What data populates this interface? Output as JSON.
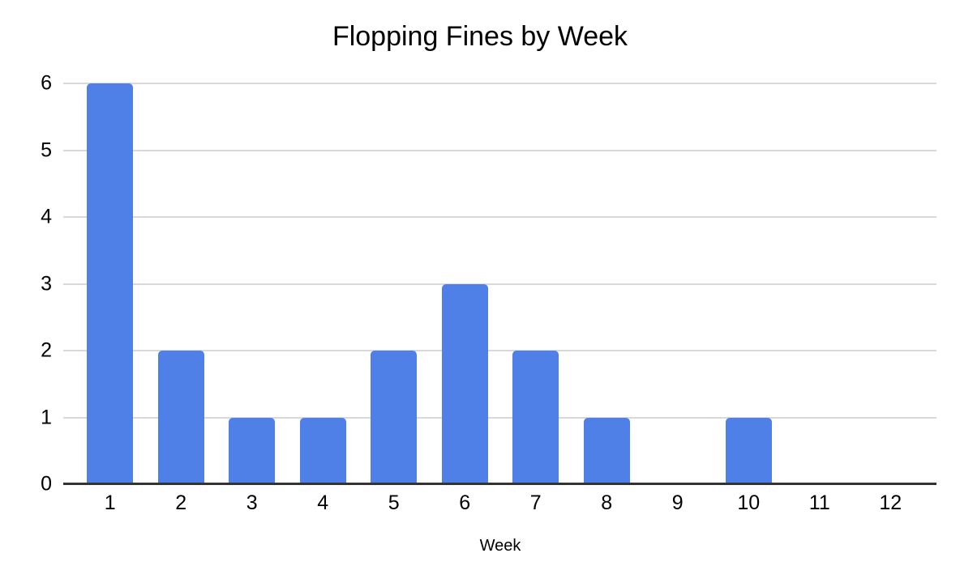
{
  "chart_data": {
    "type": "bar",
    "title": "Flopping Fines by Week",
    "xlabel": "Week",
    "ylabel": "",
    "categories": [
      "1",
      "2",
      "3",
      "4",
      "5",
      "6",
      "7",
      "8",
      "9",
      "10",
      "11",
      "12"
    ],
    "values": [
      6,
      2,
      1,
      1,
      2,
      3,
      2,
      1,
      0,
      1,
      0,
      0
    ],
    "ylim": [
      0,
      6
    ],
    "yticks": [
      0,
      1,
      2,
      3,
      4,
      5,
      6
    ],
    "grid": true,
    "legend_position": "none",
    "colors": {
      "bar": "#4f80e8",
      "gridline": "#d9d9d9",
      "axis_line": "#333333",
      "text": "#000000",
      "background": "#ffffff"
    }
  }
}
